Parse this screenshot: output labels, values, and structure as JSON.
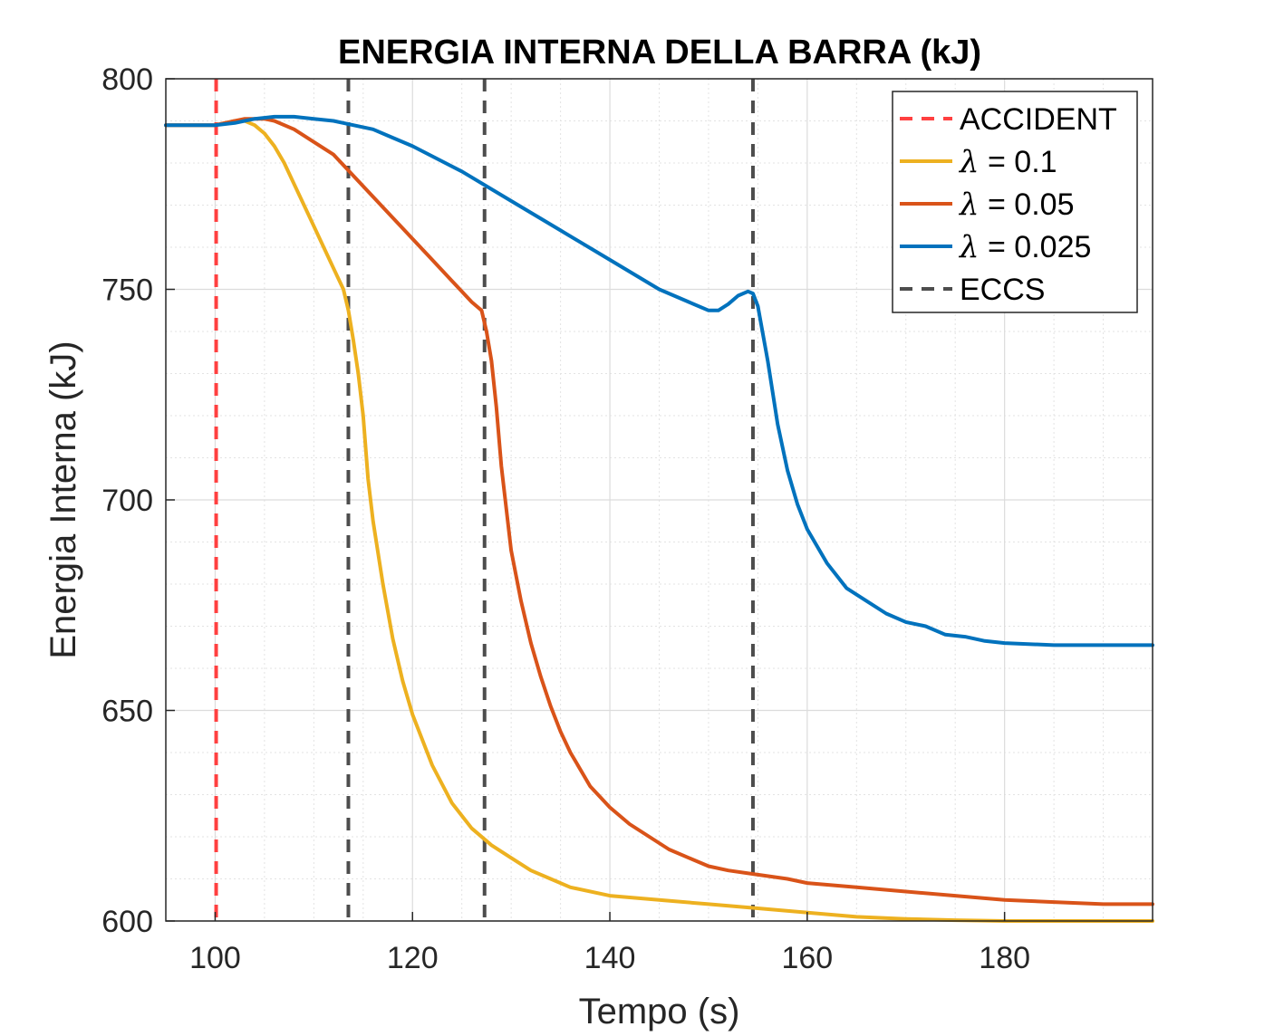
{
  "chart_data": {
    "type": "line",
    "title": "ENERGIA INTERNA DELLA BARRA (kJ)",
    "xlabel": "Tempo (s)",
    "ylabel": "Energia Interna (kJ)",
    "xlim": [
      95,
      195
    ],
    "ylim": [
      600,
      800
    ],
    "xticks": [
      100,
      120,
      140,
      160,
      180
    ],
    "yticks": [
      600,
      650,
      700,
      750,
      800
    ],
    "grid": true,
    "minor_grid": true,
    "legend_position": "top-right",
    "vertical_lines": [
      {
        "name": "ACCIDENT",
        "x": 100.1,
        "color": "#ff4040",
        "style": "dashed"
      },
      {
        "name": "ECCS",
        "x": 113.5,
        "color": "#4d4d4d",
        "style": "dashed"
      },
      {
        "name": "ECCS",
        "x": 127.3,
        "color": "#4d4d4d",
        "style": "dashed"
      },
      {
        "name": "ECCS",
        "x": 154.5,
        "color": "#4d4d4d",
        "style": "dashed"
      }
    ],
    "series": [
      {
        "name": "λ = 0.1",
        "color": "#edb120",
        "x": [
          95,
          100,
          101,
          102,
          103,
          104,
          105,
          106,
          107,
          108,
          109,
          110,
          111,
          112,
          113,
          113.5,
          114,
          114.5,
          115,
          115.5,
          116,
          117,
          118,
          119,
          120,
          122,
          124,
          126,
          128,
          130,
          132,
          134,
          136,
          140,
          145,
          150,
          155,
          160,
          165,
          170,
          175,
          180,
          185,
          190,
          195
        ],
        "y": [
          789,
          789,
          789.5,
          790,
          790,
          789,
          787,
          784,
          780,
          775,
          770,
          765,
          760,
          755,
          750,
          745,
          738,
          730,
          720,
          705,
          695,
          680,
          667,
          657,
          649,
          637,
          628,
          622,
          618,
          615,
          612,
          610,
          608,
          606,
          605,
          604,
          603,
          602,
          601,
          600.5,
          600.2,
          600,
          600,
          600,
          600
        ]
      },
      {
        "name": "λ = 0.05",
        "color": "#d95319",
        "x": [
          95,
          100,
          101,
          103,
          105,
          106,
          108,
          110,
          112,
          114,
          116,
          118,
          120,
          122,
          124,
          126,
          127,
          127.5,
          128,
          128.5,
          129,
          130,
          131,
          132,
          133,
          134,
          135,
          136,
          138,
          140,
          142,
          144,
          146,
          148,
          150,
          152,
          155,
          158,
          160,
          165,
          170,
          175,
          180,
          185,
          190,
          195
        ],
        "y": [
          789,
          789,
          789.5,
          790.5,
          790.5,
          790,
          788,
          785,
          782,
          777,
          772,
          767,
          762,
          757,
          752,
          747,
          745,
          740,
          733,
          722,
          708,
          688,
          676,
          666,
          658,
          651,
          645,
          640,
          632,
          627,
          623,
          620,
          617,
          615,
          613,
          612,
          611,
          610,
          609,
          608,
          607,
          606,
          605,
          604.5,
          604,
          604
        ]
      },
      {
        "name": "λ = 0.025",
        "color": "#0072bd",
        "x": [
          95,
          100,
          102,
          104,
          106,
          108,
          110,
          112,
          114,
          116,
          118,
          120,
          125,
          130,
          135,
          140,
          145,
          148,
          150,
          151,
          152,
          153,
          154,
          154.5,
          155,
          156,
          157,
          158,
          159,
          160,
          162,
          164,
          166,
          168,
          170,
          172,
          174,
          176,
          178,
          180,
          185,
          190,
          195
        ],
        "y": [
          789,
          789,
          789.5,
          790.5,
          791,
          791,
          790.5,
          790,
          789,
          788,
          786,
          784,
          778,
          771,
          764,
          757,
          750,
          747,
          745,
          745,
          746.5,
          748.5,
          749.5,
          749,
          746,
          733,
          718,
          707,
          699,
          693,
          685,
          679,
          676,
          673,
          671,
          670,
          668,
          667.5,
          666.5,
          666,
          665.5,
          665.5,
          665.5
        ]
      }
    ],
    "legend": [
      "ACCIDENT",
      "λ = 0.1",
      "λ = 0.05",
      "λ = 0.025",
      "ECCS"
    ]
  }
}
